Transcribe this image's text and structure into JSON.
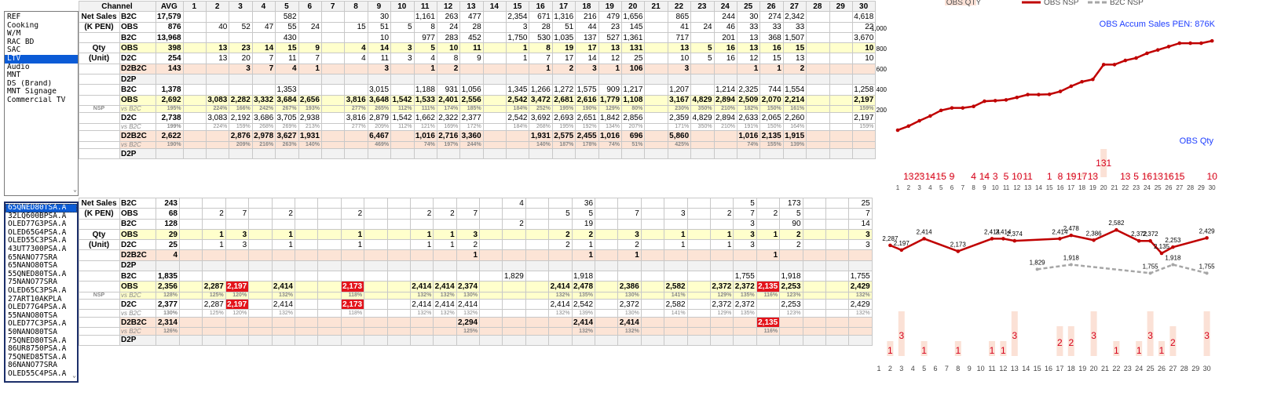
{
  "category_list": {
    "items": [
      "REF",
      "Cooking",
      "W/M",
      "RAC BD",
      "SAC",
      "LTV",
      "Audio",
      "MNT",
      "DS (Brand)",
      "MNT Signage",
      "Commercial TV"
    ],
    "selected": "LTV"
  },
  "model_list": {
    "items": [
      "65QNED80TSA.A",
      "32LQ600BPSA.A",
      "OLED77G3PSA.A",
      "OLED65G4PSA.A",
      "OLED55C3PSA.A",
      "43UT7300PSA.A",
      "65NANO77SRA",
      "65NANO80TSA",
      "55QNED80TSA.A",
      "75NANO77SRA",
      "OLED65C3PSA.A",
      "27ART10AKPLA",
      "OLED77G4PSA.A",
      "55NANO80TSA",
      "OLED77C3PSA.A",
      "50NANO80TSA",
      "75QNED80TSA.A",
      "86UR8750PSA.A",
      "75QNED85TSA.A",
      "86NANO77SRA",
      "OLED55C4PSA.A"
    ],
    "selected": "65QNED80TSA.A"
  },
  "table": {
    "channel_header": "Channel",
    "avg_header": "AVG",
    "days": [
      "1",
      "2",
      "3",
      "4",
      "5",
      "6",
      "7",
      "8",
      "9",
      "10",
      "11",
      "12",
      "13",
      "14",
      "15",
      "16",
      "17",
      "18",
      "19",
      "20",
      "21",
      "22",
      "23",
      "24",
      "25",
      "26",
      "27",
      "28",
      "29",
      "30"
    ]
  },
  "top_rows": [
    {
      "sec": "Net Sales",
      "ch": "B2C",
      "t": "b2c",
      "avg": "17,579",
      "v": {
        "5": "582",
        "9": "30",
        "11": "1,161",
        "12": "263",
        "13": "477",
        "15": "2,354",
        "16": "671",
        "17": "1,316",
        "18": "216",
        "19": "479",
        "20": "1,656",
        "22": "865",
        "24": "244",
        "25": "30",
        "26": "274",
        "27": "2,342",
        "30": "4,618"
      }
    },
    {
      "sec": "(K PEN)",
      "ch": "OBS",
      "t": "b2c",
      "avg": "876",
      "v": {
        "2": "40",
        "3": "52",
        "4": "47",
        "5": "55",
        "6": "24",
        "8": "15",
        "9": "51",
        "10": "5",
        "11": "8",
        "12": "24",
        "13": "28",
        "15": "3",
        "16": "28",
        "17": "51",
        "18": "44",
        "19": "23",
        "20": "145",
        "22": "41",
        "23": "24",
        "24": "46",
        "25": "33",
        "26": "33",
        "27": "33",
        "30": "22"
      }
    },
    {
      "sec": "",
      "ch": "B2C",
      "t": "b2c",
      "avg": "13,968",
      "v": {
        "5": "430",
        "9": "10",
        "11": "977",
        "12": "283",
        "13": "452",
        "15": "1,750",
        "16": "530",
        "17": "1,035",
        "18": "137",
        "19": "527",
        "20": "1,361",
        "22": "717",
        "24": "201",
        "25": "13",
        "26": "368",
        "27": "1,507",
        "30": "3,670"
      }
    },
    {
      "sec": "Qty",
      "ch": "OBS",
      "t": "obs",
      "avg": "398",
      "v": {
        "2": "13",
        "3": "23",
        "4": "14",
        "5": "15",
        "6": "9",
        "8": "4",
        "9": "14",
        "10": "3",
        "11": "5",
        "12": "10",
        "13": "11",
        "15": "1",
        "16": "8",
        "17": "19",
        "18": "17",
        "19": "13",
        "20": "131",
        "22": "13",
        "23": "5",
        "24": "16",
        "25": "13",
        "26": "16",
        "27": "15",
        "30": "10"
      }
    },
    {
      "sec": "(Unit)",
      "ch": "D2C",
      "t": "b2c",
      "avg": "254",
      "v": {
        "2": "13",
        "3": "20",
        "4": "7",
        "5": "11",
        "6": "7",
        "8": "4",
        "9": "11",
        "10": "3",
        "11": "4",
        "12": "8",
        "13": "9",
        "15": "1",
        "16": "7",
        "17": "17",
        "18": "14",
        "19": "12",
        "20": "25",
        "22": "10",
        "23": "5",
        "24": "16",
        "25": "12",
        "26": "15",
        "27": "13",
        "30": "10"
      }
    },
    {
      "sec": "",
      "ch": "D2B2C",
      "t": "d2b",
      "avg": "143",
      "v": {
        "3": "3",
        "4": "7",
        "5": "4",
        "6": "1",
        "9": "3",
        "11": "1",
        "12": "2",
        "16": "1",
        "17": "2",
        "18": "3",
        "19": "1",
        "20": "106",
        "22": "3",
        "25": "1",
        "26": "1",
        "27": "2"
      }
    },
    {
      "sec": "",
      "ch": "D2P",
      "t": "d2p",
      "avg": "",
      "v": {}
    },
    {
      "sec": "",
      "ch": "B2C",
      "t": "b2c",
      "avg": "1,378",
      "v": {
        "5": "1,353",
        "9": "3,015",
        "11": "1,188",
        "12": "931",
        "13": "1,056",
        "15": "1,345",
        "16": "1,266",
        "17": "1,272",
        "18": "1,575",
        "19": "909",
        "20": "1,217",
        "22": "1,207",
        "24": "1,214",
        "25": "2,325",
        "26": "744",
        "27": "1,554",
        "30": "1,258"
      }
    },
    {
      "sec": "",
      "ch": "OBS",
      "t": "obs",
      "avg": "2,692",
      "v": {
        "2": "3,083",
        "3": "2,282",
        "4": "3,332",
        "5": "3,684",
        "6": "2,656",
        "8": "3,816",
        "9": "3,648",
        "10": "1,542",
        "11": "1,533",
        "12": "2,401",
        "13": "2,556",
        "15": "2,542",
        "16": "3,472",
        "17": "2,681",
        "18": "2,616",
        "19": "1,779",
        "20": "1,108",
        "22": "3,167",
        "23": "4,829",
        "24": "2,894",
        "25": "2,509",
        "26": "2,070",
        "27": "2,214",
        "30": "2,197"
      }
    },
    {
      "sec": "NSP",
      "ch": "vs B2C",
      "t": "vs-obs",
      "avg": "195%",
      "v": {
        "2": "224%",
        "3": "166%",
        "4": "242%",
        "5": "267%",
        "6": "193%",
        "8": "277%",
        "9": "265%",
        "10": "112%",
        "11": "111%",
        "12": "174%",
        "13": "185%",
        "15": "184%",
        "16": "252%",
        "17": "195%",
        "18": "190%",
        "19": "129%",
        "20": "80%",
        "22": "230%",
        "23": "350%",
        "24": "210%",
        "25": "182%",
        "26": "150%",
        "27": "161%",
        "30": "159%"
      }
    },
    {
      "sec": "",
      "ch": "D2C",
      "t": "b2c",
      "avg": "2,738",
      "v": {
        "2": "3,083",
        "3": "2,192",
        "4": "3,686",
        "5": "3,705",
        "6": "2,938",
        "8": "3,816",
        "9": "2,879",
        "10": "1,542",
        "11": "1,662",
        "12": "2,322",
        "13": "2,377",
        "15": "2,542",
        "16": "3,692",
        "17": "2,693",
        "18": "2,651",
        "19": "1,842",
        "20": "2,856",
        "22": "2,359",
        "23": "4,829",
        "24": "2,894",
        "25": "2,633",
        "26": "2,065",
        "27": "2,260",
        "30": "2,197"
      }
    },
    {
      "sec": "",
      "ch": "vs B2C",
      "t": "vs",
      "avg": "199%",
      "v": {
        "2": "224%",
        "3": "159%",
        "4": "268%",
        "5": "269%",
        "6": "213%",
        "8": "277%",
        "9": "209%",
        "10": "112%",
        "11": "121%",
        "12": "169%",
        "13": "172%",
        "15": "184%",
        "16": "268%",
        "17": "195%",
        "18": "192%",
        "19": "134%",
        "20": "207%",
        "22": "171%",
        "23": "350%",
        "24": "210%",
        "25": "191%",
        "26": "150%",
        "27": "164%",
        "30": "159%"
      }
    },
    {
      "sec": "",
      "ch": "D2B2C",
      "t": "d2b",
      "avg": "2,622",
      "v": {
        "3": "2,876",
        "4": "2,978",
        "5": "3,627",
        "6": "1,931",
        "9": "6,467",
        "11": "1,016",
        "12": "2,716",
        "13": "3,360",
        "16": "1,931",
        "17": "2,575",
        "18": "2,455",
        "19": "1,016",
        "20": "696",
        "22": "5,860",
        "25": "1,016",
        "26": "2,135",
        "27": "1,915"
      }
    },
    {
      "sec": "",
      "ch": "vs B2C",
      "t": "vs-d2b",
      "avg": "190%",
      "v": {
        "3": "209%",
        "4": "216%",
        "5": "263%",
        "6": "140%",
        "9": "469%",
        "11": "74%",
        "12": "197%",
        "13": "244%",
        "16": "140%",
        "17": "187%",
        "18": "178%",
        "19": "74%",
        "20": "51%",
        "22": "425%",
        "25": "74%",
        "26": "155%",
        "27": "139%"
      }
    },
    {
      "sec": "",
      "ch": "D2P",
      "t": "d2p",
      "avg": "",
      "v": {}
    }
  ],
  "bottom_rows": [
    {
      "sec": "Net Sales",
      "ch": "B2C",
      "t": "b2c",
      "avg": "243",
      "v": {
        "15": "4",
        "18": "36",
        "25": "5",
        "27": "173",
        "30": "25"
      }
    },
    {
      "sec": "(K PEN)",
      "ch": "OBS",
      "t": "b2c",
      "avg": "68",
      "v": {
        "2": "2",
        "3": "7",
        "5": "2",
        "8": "2",
        "11": "2",
        "12": "2",
        "13": "7",
        "17": "5",
        "18": "5",
        "20": "7",
        "22": "3",
        "24": "2",
        "25": "7",
        "26": "2",
        "27": "5",
        "30": "7"
      }
    },
    {
      "sec": "",
      "ch": "B2C",
      "t": "b2c",
      "avg": "128",
      "v": {
        "15": "2",
        "18": "19",
        "25": "3",
        "27": "90",
        "30": "14"
      }
    },
    {
      "sec": "Qty",
      "ch": "OBS",
      "t": "obs",
      "avg": "29",
      "v": {
        "2": "1",
        "3": "3",
        "5": "1",
        "8": "1",
        "11": "1",
        "12": "1",
        "13": "3",
        "17": "2",
        "18": "2",
        "20": "3",
        "22": "1",
        "24": "1",
        "25": "3",
        "26": "1",
        "27": "2",
        "30": "3"
      }
    },
    {
      "sec": "(Unit)",
      "ch": "D2C",
      "t": "b2c",
      "avg": "25",
      "v": {
        "2": "1",
        "3": "3",
        "5": "1",
        "8": "1",
        "11": "1",
        "12": "1",
        "13": "2",
        "17": "2",
        "18": "1",
        "20": "2",
        "22": "1",
        "24": "1",
        "25": "3",
        "27": "2",
        "30": "3"
      }
    },
    {
      "sec": "",
      "ch": "D2B2C",
      "t": "d2b",
      "avg": "4",
      "v": {
        "13": "1",
        "18": "1",
        "20": "1",
        "26": "1"
      }
    },
    {
      "sec": "",
      "ch": "D2P",
      "t": "d2p",
      "avg": "",
      "v": {}
    },
    {
      "sec": "",
      "ch": "B2C",
      "t": "b2c",
      "avg": "1,835",
      "v": {
        "15": "1,829",
        "18": "1,918",
        "25": "1,755",
        "27": "1,918",
        "30": "1,755"
      }
    },
    {
      "sec": "",
      "ch": "OBS",
      "t": "obs",
      "avg": "2,356",
      "v": {
        "2": "2,287",
        "3": "2,197",
        "5": "2,414",
        "8": "2,173",
        "11": "2,414",
        "12": "2,414",
        "13": "2,374",
        "17": "2,414",
        "18": "2,478",
        "20": "2,386",
        "22": "2,582",
        "24": "2,372",
        "25": "2,372",
        "26": "2,135",
        "27": "2,253",
        "30": "2,429"
      },
      "red": [
        "3",
        "8",
        "26"
      ]
    },
    {
      "sec": "NSP",
      "ch": "vs B2C",
      "t": "vs-obs",
      "avg": "128%",
      "v": {
        "2": "125%",
        "3": "120%",
        "5": "132%",
        "8": "118%",
        "11": "132%",
        "12": "132%",
        "13": "130%",
        "17": "132%",
        "18": "135%",
        "20": "130%",
        "22": "141%",
        "24": "129%",
        "25": "135%",
        "26": "116%",
        "27": "123%",
        "30": "132%"
      }
    },
    {
      "sec": "",
      "ch": "D2C",
      "t": "b2c",
      "avg": "2,377",
      "v": {
        "2": "2,287",
        "3": "2,197",
        "5": "2,414",
        "8": "2,173",
        "11": "2,414",
        "12": "2,414",
        "13": "2,414",
        "17": "2,414",
        "18": "2,542",
        "20": "2,372",
        "22": "2,582",
        "24": "2,372",
        "25": "2,372",
        "27": "2,253",
        "30": "2,429"
      },
      "red": [
        "3",
        "8"
      ]
    },
    {
      "sec": "",
      "ch": "vs B2C",
      "t": "vs",
      "avg": "130%",
      "v": {
        "2": "125%",
        "3": "120%",
        "5": "132%",
        "8": "118%",
        "11": "132%",
        "12": "132%",
        "13": "132%",
        "17": "132%",
        "18": "139%",
        "20": "130%",
        "22": "141%",
        "24": "129%",
        "25": "135%",
        "27": "123%",
        "30": "132%"
      }
    },
    {
      "sec": "",
      "ch": "D2B2C",
      "t": "d2b",
      "avg": "2,314",
      "v": {
        "13": "2,294",
        "18": "2,414",
        "20": "2,414",
        "26": "2,135"
      },
      "red": [
        "26"
      ]
    },
    {
      "sec": "",
      "ch": "vs B2C",
      "t": "vs-d2b",
      "avg": "126%",
      "v": {
        "13": "125%",
        "18": "132%",
        "20": "132%",
        "26": "116%"
      }
    },
    {
      "sec": "",
      "ch": "D2P",
      "t": "d2p",
      "avg": "",
      "v": {}
    }
  ],
  "chart_data": [
    {
      "type": "line",
      "legend": [
        "OBS QTY",
        "OBS NSP",
        "B2C NSP"
      ],
      "annotation": "OBS Accum Sales PEN: 876K",
      "annotation2": "OBS Qty",
      "x": [
        1,
        2,
        3,
        4,
        5,
        6,
        7,
        8,
        9,
        10,
        11,
        12,
        13,
        14,
        15,
        16,
        17,
        18,
        19,
        20,
        21,
        22,
        23,
        24,
        25,
        26,
        27,
        28,
        29,
        30
      ],
      "ylim": [
        0,
        1000
      ],
      "yticks": [
        200,
        400,
        600,
        800,
        "1,000"
      ],
      "series": [
        {
          "name": "OBS Accum Sales PEN",
          "values": [
            0,
            40,
            92,
            139,
            194,
            218,
            218,
            233,
            284,
            289,
            297,
            321,
            349,
            349,
            352,
            380,
            431,
            475,
            498,
            643,
            643,
            684,
            708,
            754,
            787,
            820,
            853,
            853,
            853,
            876
          ]
        },
        {
          "name": "OBS Qty",
          "values": [
            0,
            13,
            23,
            14,
            15,
            9,
            0,
            4,
            14,
            3,
            5,
            10,
            11,
            0,
            1,
            8,
            19,
            17,
            13,
            131,
            0,
            13,
            5,
            16,
            13,
            16,
            15,
            0,
            0,
            10
          ]
        }
      ]
    },
    {
      "type": "line",
      "x": [
        1,
        2,
        3,
        4,
        5,
        6,
        7,
        8,
        9,
        10,
        11,
        12,
        13,
        14,
        15,
        16,
        17,
        18,
        19,
        20,
        21,
        22,
        23,
        24,
        25,
        26,
        27,
        28,
        29,
        30
      ],
      "series": [
        {
          "name": "OBS NSP",
          "values": [
            null,
            2287,
            2197,
            null,
            2414,
            null,
            null,
            2173,
            null,
            null,
            2414,
            2414,
            2374,
            null,
            null,
            null,
            2414,
            2478,
            null,
            2386,
            null,
            2582,
            null,
            2372,
            2372,
            2135,
            2253,
            null,
            null,
            2429
          ]
        },
        {
          "name": "B2C NSP",
          "values": [
            null,
            null,
            null,
            null,
            null,
            null,
            null,
            null,
            null,
            null,
            null,
            null,
            null,
            null,
            1829,
            null,
            null,
            1918,
            null,
            null,
            null,
            null,
            null,
            null,
            1755,
            null,
            1918,
            null,
            null,
            1755
          ]
        },
        {
          "name": "OBS Qty",
          "values": [
            0,
            1,
            3,
            0,
            1,
            0,
            0,
            1,
            0,
            0,
            1,
            1,
            3,
            0,
            0,
            0,
            2,
            2,
            0,
            3,
            0,
            1,
            0,
            1,
            3,
            1,
            2,
            0,
            0,
            3
          ]
        }
      ]
    }
  ],
  "colors": {
    "obs_line": "#c00000",
    "b2c_line": "#a6a6a6",
    "qty_bar": "#fbe1d6",
    "qty_label": "#d6001c",
    "annotation": "#1f3fff",
    "obs_row": "#ffffcc",
    "d2b2c_row": "#fce4d6",
    "alert": "#e3141b"
  }
}
